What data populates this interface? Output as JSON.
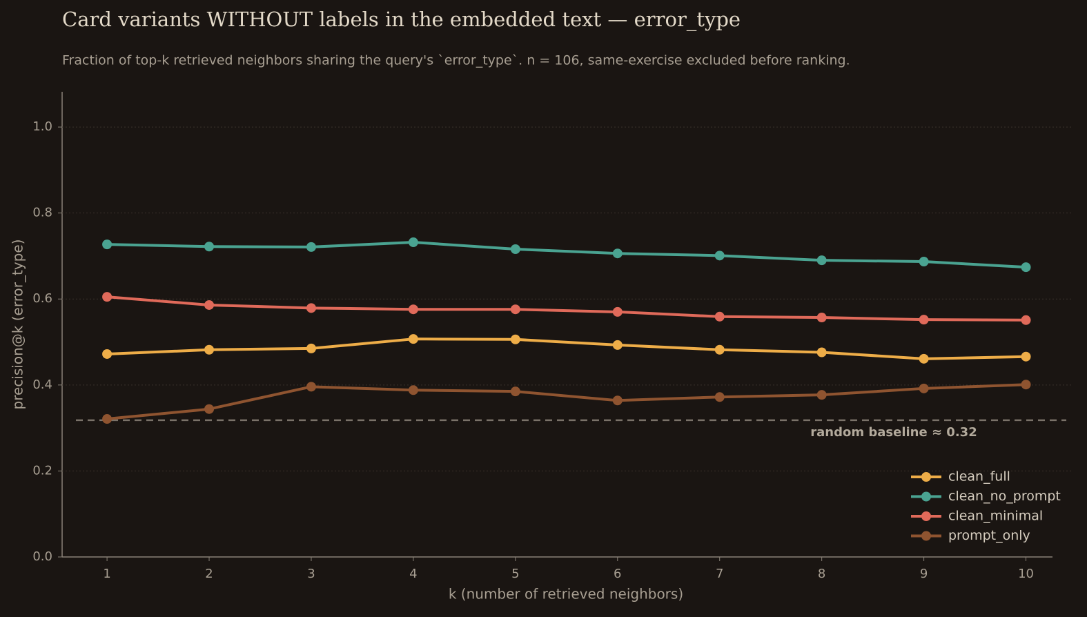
{
  "chart_data": {
    "type": "line",
    "title": "Card variants WITHOUT labels in the embedded text — error_type",
    "subtitle": "Fraction of top-k retrieved neighbors sharing the query's `error_type`.  n = 106, same-exercise excluded before ranking.",
    "xlabel": "k (number of retrieved neighbors)",
    "ylabel": "precision@k  (error_type)",
    "x": [
      1,
      2,
      3,
      4,
      5,
      6,
      7,
      8,
      9,
      10
    ],
    "xlim": [
      0.56,
      10.26
    ],
    "xticks": [
      1,
      2,
      3,
      4,
      5,
      6,
      7,
      8,
      9,
      10
    ],
    "ylim": [
      0,
      1.082
    ],
    "yticks": [
      {
        "value": 0,
        "label": "0.0"
      },
      0.2,
      0.4,
      0.6,
      0.8,
      {
        "value": 1,
        "label": "1.0"
      }
    ],
    "grid": true,
    "legend": "lower right",
    "series": [
      {
        "name": "clean_full",
        "color": "#eead48",
        "values": [
          0.472,
          0.482,
          0.485,
          0.507,
          0.506,
          0.493,
          0.482,
          0.476,
          0.461,
          0.466
        ]
      },
      {
        "name": "clean_no_prompt",
        "color": "#4aa391",
        "values": [
          0.727,
          0.722,
          0.721,
          0.732,
          0.716,
          0.706,
          0.701,
          0.69,
          0.687,
          0.674
        ]
      },
      {
        "name": "clean_minimal",
        "color": "#e06a5a",
        "values": [
          0.605,
          0.586,
          0.579,
          0.576,
          0.576,
          0.57,
          0.559,
          0.557,
          0.552,
          0.551
        ]
      },
      {
        "name": "prompt_only",
        "color": "#8f5430",
        "values": [
          0.321,
          0.344,
          0.396,
          0.388,
          0.385,
          0.364,
          0.372,
          0.377,
          0.392,
          0.401
        ]
      }
    ],
    "baseline": {
      "value": 0.318,
      "label": "random baseline ≈ 0.32"
    }
  }
}
